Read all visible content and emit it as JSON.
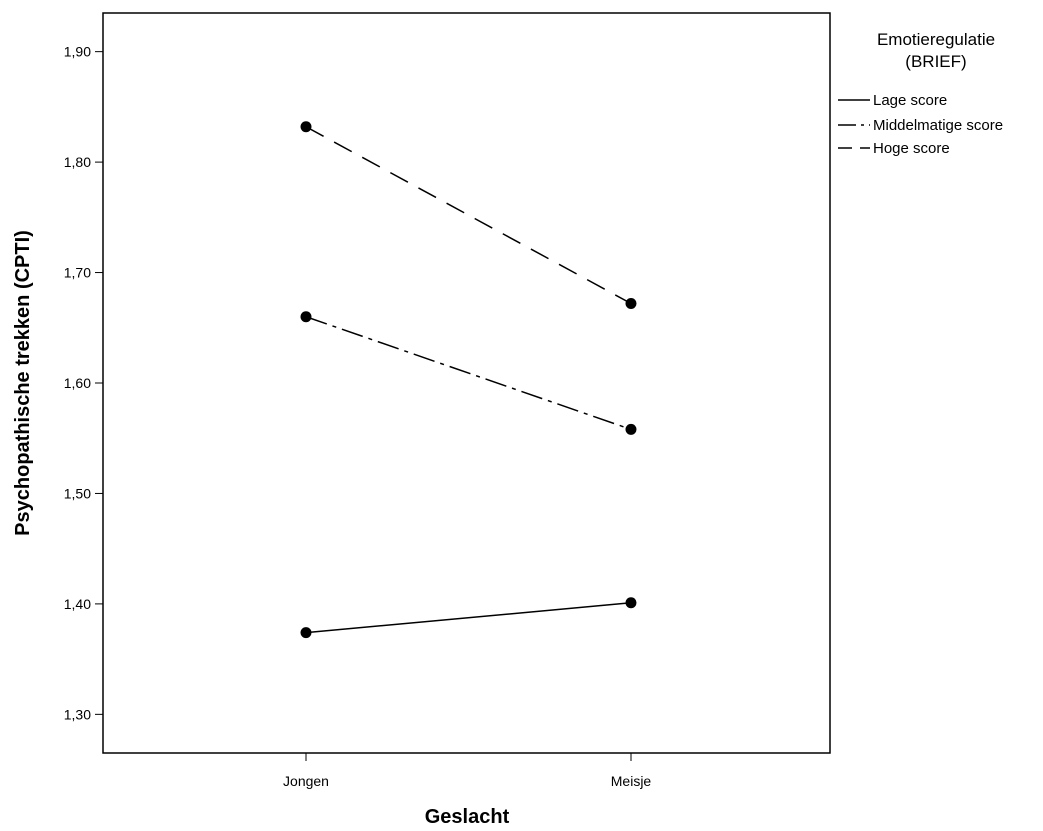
{
  "chart_data": {
    "type": "line",
    "xlabel": "Geslacht",
    "ylabel": "Psychopathische trekken (CPTI)",
    "categories": [
      "Jongen",
      "Meisje"
    ],
    "ylim": [
      1.265,
      1.935
    ],
    "yticks": [
      1.3,
      1.4,
      1.5,
      1.6,
      1.7,
      1.8,
      1.9
    ],
    "ytick_labels": [
      "1,30",
      "1,40",
      "1,50",
      "1,60",
      "1,70",
      "1,80",
      "1,90"
    ],
    "grid": false,
    "legend": {
      "title_line1": "Emotieregulatie",
      "title_line2": "(BRIEF)",
      "placement": "right"
    },
    "series": [
      {
        "name": "Lage score",
        "values": [
          1.374,
          1.401
        ],
        "dash": "solid"
      },
      {
        "name": "Middelmatige score",
        "values": [
          1.66,
          1.558
        ],
        "dash": "dashdot"
      },
      {
        "name": "Hoge score",
        "values": [
          1.832,
          1.672
        ],
        "dash": "dashed"
      }
    ],
    "line_color": "#000000",
    "marker_color": "#000000"
  }
}
